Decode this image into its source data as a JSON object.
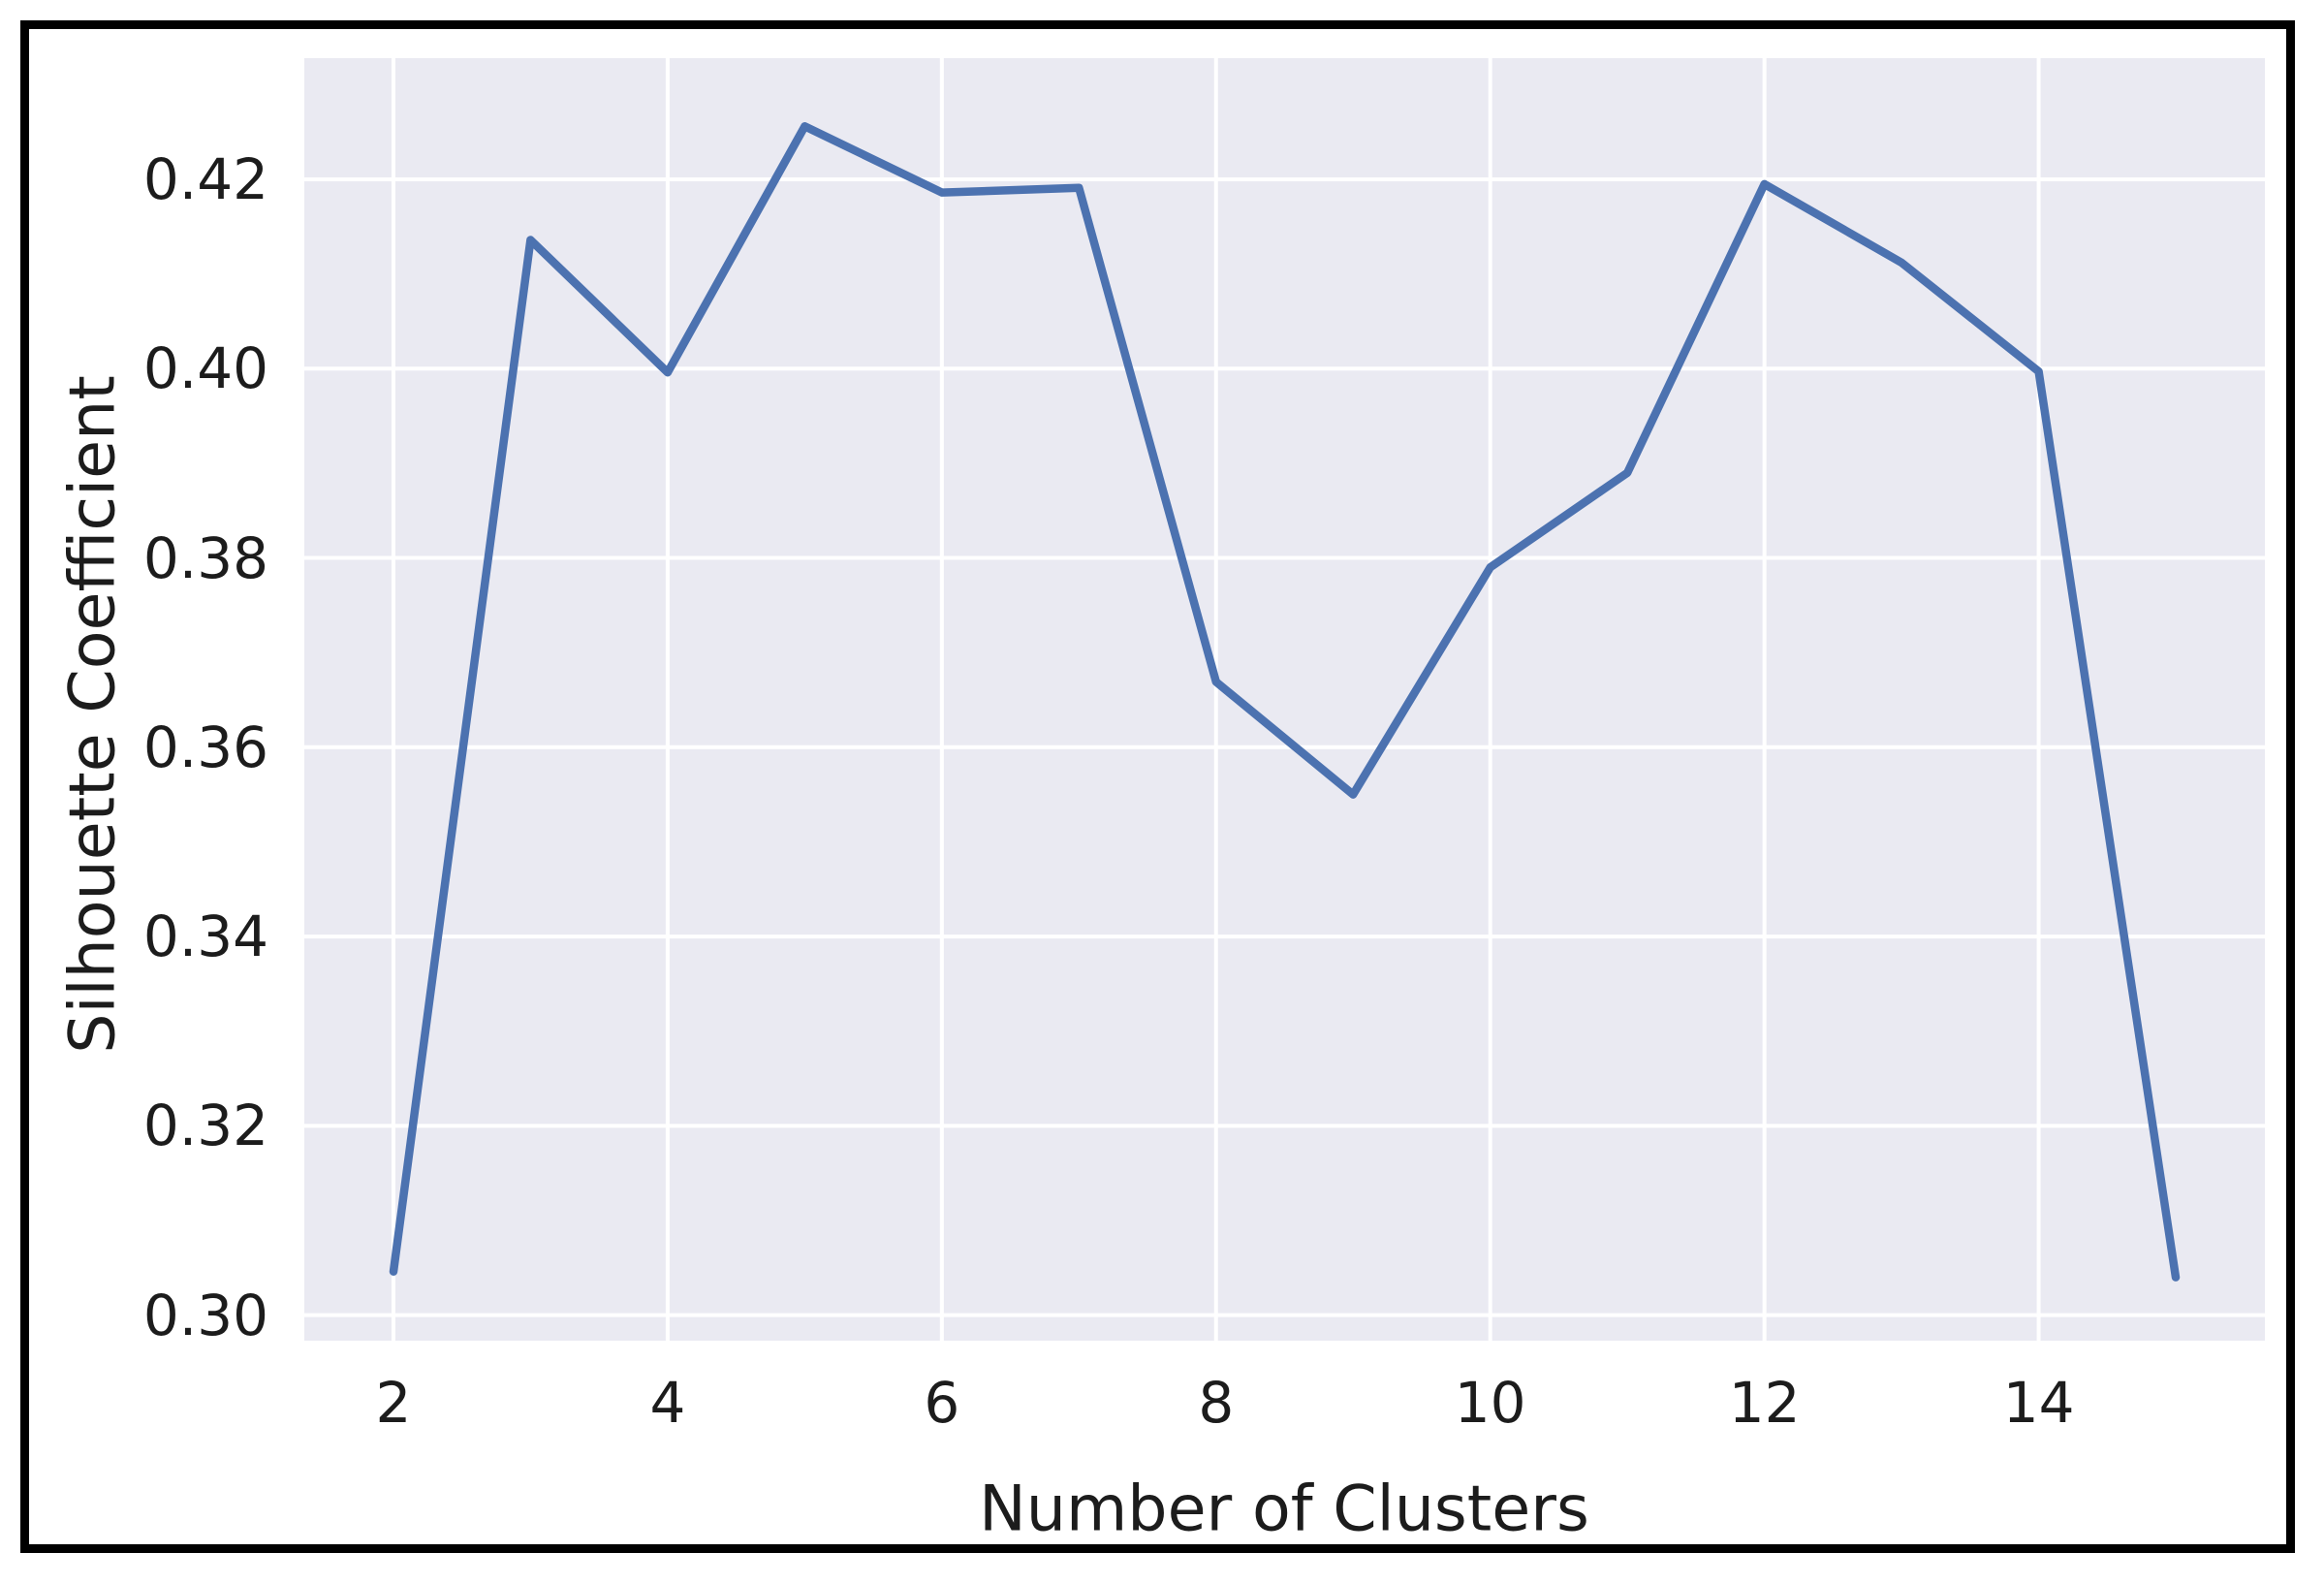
{
  "figure": {
    "background_color": "#ffffff",
    "frame_color": "#000000"
  },
  "chart_data": {
    "type": "line",
    "title": "",
    "xlabel": "Number of Clusters",
    "ylabel": "Silhouette Coefficient",
    "x": [
      2,
      3,
      4,
      5,
      6,
      7,
      8,
      9,
      10,
      11,
      12,
      13,
      14,
      15
    ],
    "series": [
      {
        "name": "Silhouette Coefficient",
        "values": [
          0.3046,
          0.4136,
          0.3996,
          0.4256,
          0.4186,
          0.4191,
          0.3669,
          0.355,
          0.379,
          0.389,
          0.4195,
          0.4112,
          0.3997,
          0.304
        ]
      }
    ],
    "xlim": [
      1.35,
      15.65
    ],
    "ylim": [
      0.2973,
      0.4328
    ],
    "x_ticks": [
      2,
      4,
      6,
      8,
      10,
      12,
      14
    ],
    "y_ticks": [
      0.3,
      0.32,
      0.34,
      0.36,
      0.38,
      0.4,
      0.42
    ],
    "y_tick_labels": [
      "0.30",
      "0.32",
      "0.34",
      "0.36",
      "0.38",
      "0.40",
      "0.42"
    ],
    "x_tick_labels": [
      "2",
      "4",
      "6",
      "8",
      "10",
      "12",
      "14"
    ],
    "grid": true,
    "legend_position": "none",
    "line_color": "#4c72b0",
    "plot_background_color": "#eaeaf2",
    "grid_color": "#ffffff",
    "text_color": "#1c1c1c"
  }
}
